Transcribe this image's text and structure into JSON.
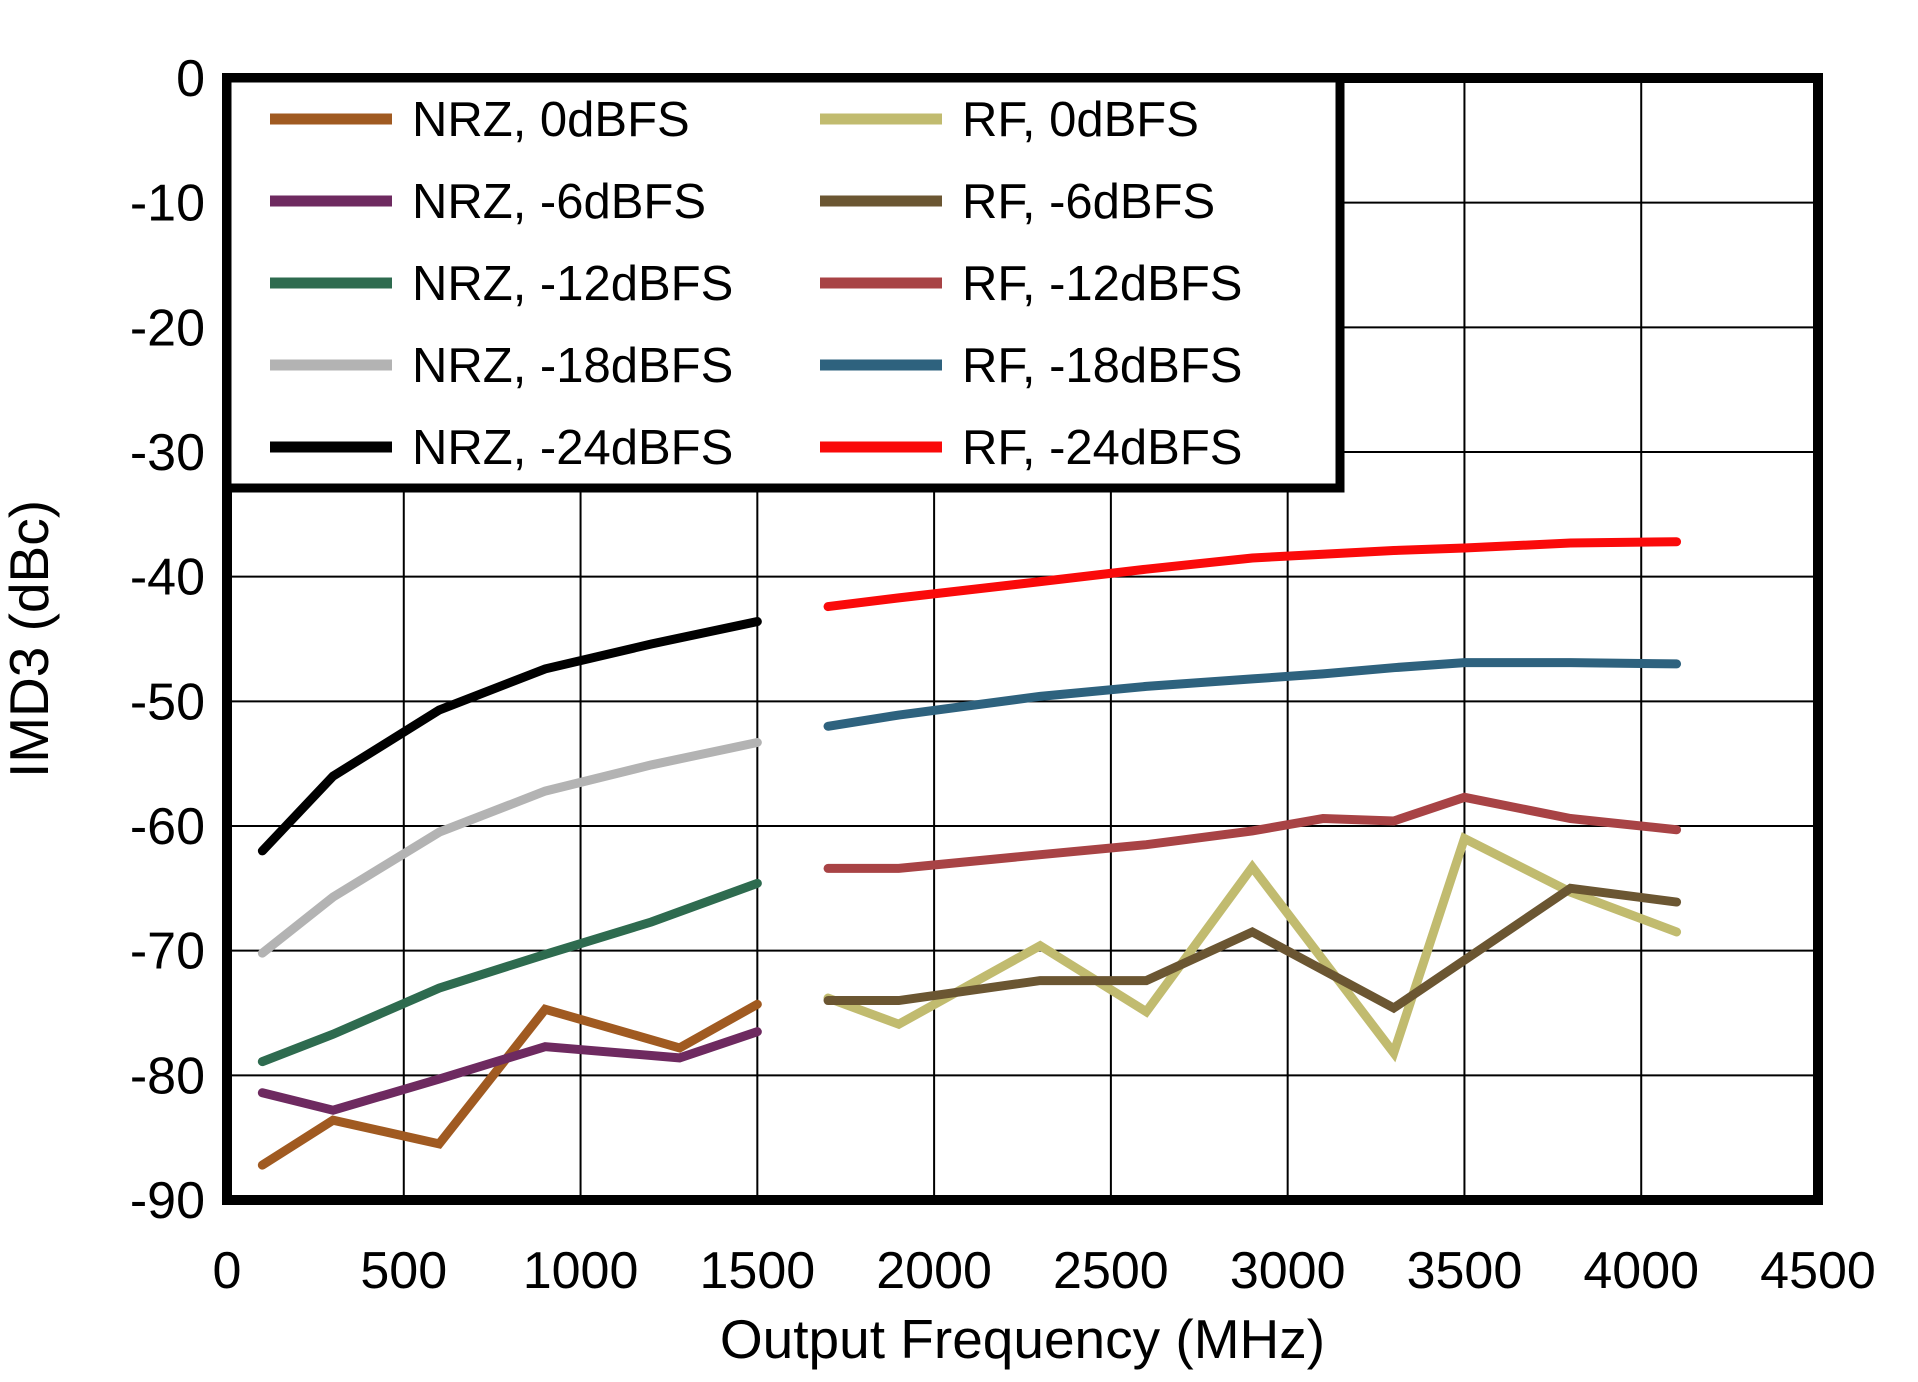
{
  "chart_data": {
    "type": "line",
    "title": "",
    "xlabel": "Output Frequency (MHz)",
    "ylabel": "IMD3 (dBc)",
    "xlim": [
      0,
      4500
    ],
    "ylim": [
      -90,
      0
    ],
    "x_ticks": [
      0,
      500,
      1000,
      1500,
      2000,
      2500,
      3000,
      3500,
      4000,
      4500
    ],
    "y_ticks": [
      0,
      -10,
      -20,
      -30,
      -40,
      -50,
      -60,
      -70,
      -80,
      -90
    ],
    "grid": true,
    "legend_position": "top-left",
    "legend_columns": 2,
    "series": [
      {
        "name": "NRZ, 0dBFS",
        "color": "#A05A21",
        "x": [
          100,
          300,
          600,
          900,
          1280,
          1500
        ],
        "y": [
          -87.2,
          -83.6,
          -85.5,
          -74.7,
          -77.8,
          -74.3
        ]
      },
      {
        "name": "NRZ, -6dBFS",
        "color": "#6E2A60",
        "x": [
          100,
          300,
          600,
          900,
          1280,
          1500
        ],
        "y": [
          -81.4,
          -82.8,
          -80.3,
          -77.7,
          -78.6,
          -76.5
        ]
      },
      {
        "name": "NRZ, -12dBFS",
        "color": "#2E6B4F",
        "x": [
          100,
          300,
          600,
          900,
          1200,
          1500
        ],
        "y": [
          -78.9,
          -76.7,
          -73.0,
          -70.3,
          -67.7,
          -64.6
        ]
      },
      {
        "name": "NRZ, -18dBFS",
        "color": "#B3B3B3",
        "x": [
          100,
          300,
          600,
          900,
          1200,
          1500
        ],
        "y": [
          -70.2,
          -65.7,
          -60.5,
          -57.2,
          -55.1,
          -53.3
        ]
      },
      {
        "name": "NRZ, -24dBFS",
        "color": "#000000",
        "x": [
          100,
          300,
          600,
          900,
          1200,
          1500
        ],
        "y": [
          -62.0,
          -56.0,
          -50.7,
          -47.4,
          -45.4,
          -43.6
        ]
      },
      {
        "name": "RF, 0dBFS",
        "color": "#C1BB6F",
        "x": [
          1700,
          1900,
          2300,
          2600,
          2900,
          3300,
          3500,
          3800,
          4100
        ],
        "y": [
          -73.8,
          -75.9,
          -69.6,
          -74.9,
          -63.3,
          -78.2,
          -61.0,
          -65.3,
          -68.5
        ]
      },
      {
        "name": "RF, -6dBFS",
        "color": "#6B5632",
        "x": [
          1700,
          1900,
          2300,
          2600,
          2900,
          3300,
          3800,
          4100
        ],
        "y": [
          -74.0,
          -74.0,
          -72.4,
          -72.4,
          -68.5,
          -74.6,
          -65.0,
          -66.1
        ]
      },
      {
        "name": "RF, -12dBFS",
        "color": "#A84345",
        "x": [
          1700,
          1900,
          2300,
          2600,
          2900,
          3100,
          3300,
          3500,
          3800,
          4100
        ],
        "y": [
          -63.4,
          -63.4,
          -62.3,
          -61.5,
          -60.4,
          -59.4,
          -59.6,
          -57.7,
          -59.4,
          -60.3
        ]
      },
      {
        "name": "RF, -18dBFS",
        "color": "#2E627E",
        "x": [
          1700,
          1900,
          2300,
          2600,
          2900,
          3100,
          3300,
          3500,
          3800,
          4100
        ],
        "y": [
          -52.0,
          -51.1,
          -49.6,
          -48.8,
          -48.2,
          -47.8,
          -47.3,
          -46.9,
          -46.9,
          -47.0
        ]
      },
      {
        "name": "RF, -24dBFS",
        "color": "#FA0A0A",
        "x": [
          1700,
          1900,
          2300,
          2600,
          2900,
          3100,
          3300,
          3500,
          3800,
          4100
        ],
        "y": [
          -42.4,
          -41.7,
          -40.4,
          -39.4,
          -38.5,
          -38.2,
          -37.9,
          -37.7,
          -37.3,
          -37.2
        ]
      }
    ]
  }
}
